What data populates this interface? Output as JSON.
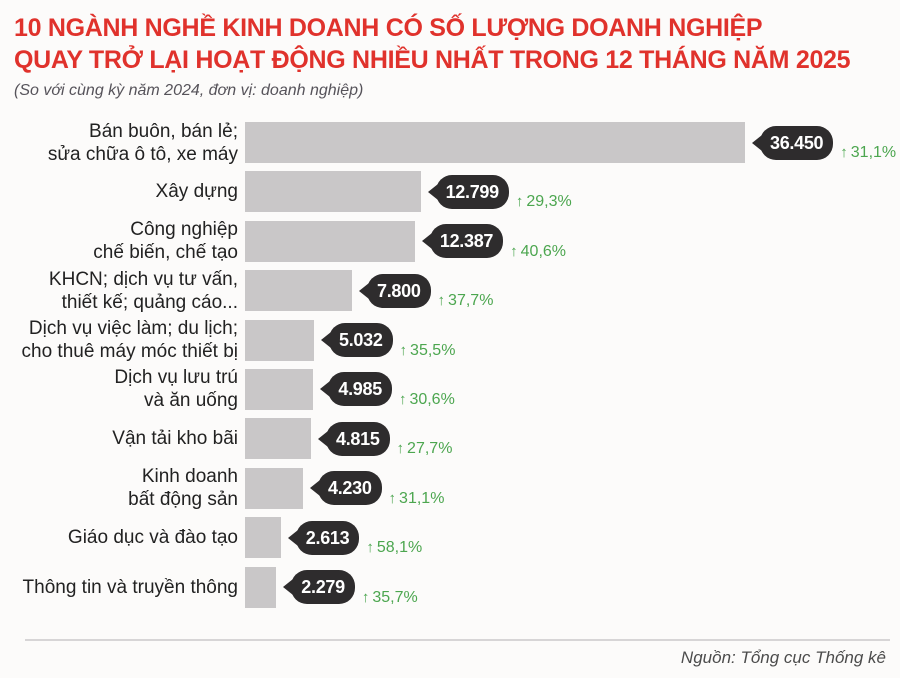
{
  "header": {
    "title": "10 NGÀNH NGHỀ KINH DOANH CÓ SỐ LƯỢNG DOANH NGHIỆP\nQUAY TRỞ LẠI HOẠT ĐỘNG NHIỀU NHẤT TRONG 12 THÁNG NĂM 2025",
    "subtitle": "(So với cùng kỳ năm 2024, đơn vị: doanh nghiệp)"
  },
  "footer": {
    "source": "Nguồn: Tổng cục Thống kê"
  },
  "icons": {
    "up_arrow": "↑"
  },
  "colors": {
    "title_red": "#e0322c",
    "bar_gray": "#c9c7c8",
    "badge_dark": "#2e2c2d",
    "growth_green": "#4ca64f"
  },
  "chart_data": {
    "type": "bar",
    "orientation": "horizontal",
    "title": "10 ngành nghề kinh doanh có số lượng doanh nghiệp quay trở lại hoạt động nhiều nhất trong 12 tháng năm 2025",
    "unit": "doanh nghiệp",
    "comparison": "So với cùng kỳ năm 2024",
    "max_value": 36450,
    "xlim": [
      0,
      36450
    ],
    "grid": false,
    "legend": false,
    "rows": [
      {
        "label": "Bán buôn, bán lẻ;\nsửa chữa ô tô, xe máy",
        "value": 36450,
        "value_label": "36.450",
        "delta": "31,1%"
      },
      {
        "label": "Xây dựng",
        "value": 12799,
        "value_label": "12.799",
        "delta": "29,3%"
      },
      {
        "label": "Công nghiệp\nchế biến, chế tạo",
        "value": 12387,
        "value_label": "12.387",
        "delta": "40,6%"
      },
      {
        "label": "KHCN; dịch vụ tư vấn,\nthiết kế; quảng cáo...",
        "value": 7800,
        "value_label": "7.800",
        "delta": "37,7%"
      },
      {
        "label": "Dịch vụ việc làm; du lịch;\ncho thuê máy móc thiết bị",
        "value": 5032,
        "value_label": "5.032",
        "delta": "35,5%"
      },
      {
        "label": "Dịch vụ lưu trú\nvà ăn uống",
        "value": 4985,
        "value_label": "4.985",
        "delta": "30,6%"
      },
      {
        "label": "Vận tải kho bãi",
        "value": 4815,
        "value_label": "4.815",
        "delta": "27,7%"
      },
      {
        "label": "Kinh doanh\nbất động sản",
        "value": 4230,
        "value_label": "4.230",
        "delta": "31,1%"
      },
      {
        "label": "Giáo dục và đào tạo",
        "value": 2613,
        "value_label": "2.613",
        "delta": "58,1%"
      },
      {
        "label": "Thông tin và truyền thông",
        "value": 2279,
        "value_label": "2.279",
        "delta": "35,7%"
      }
    ]
  }
}
